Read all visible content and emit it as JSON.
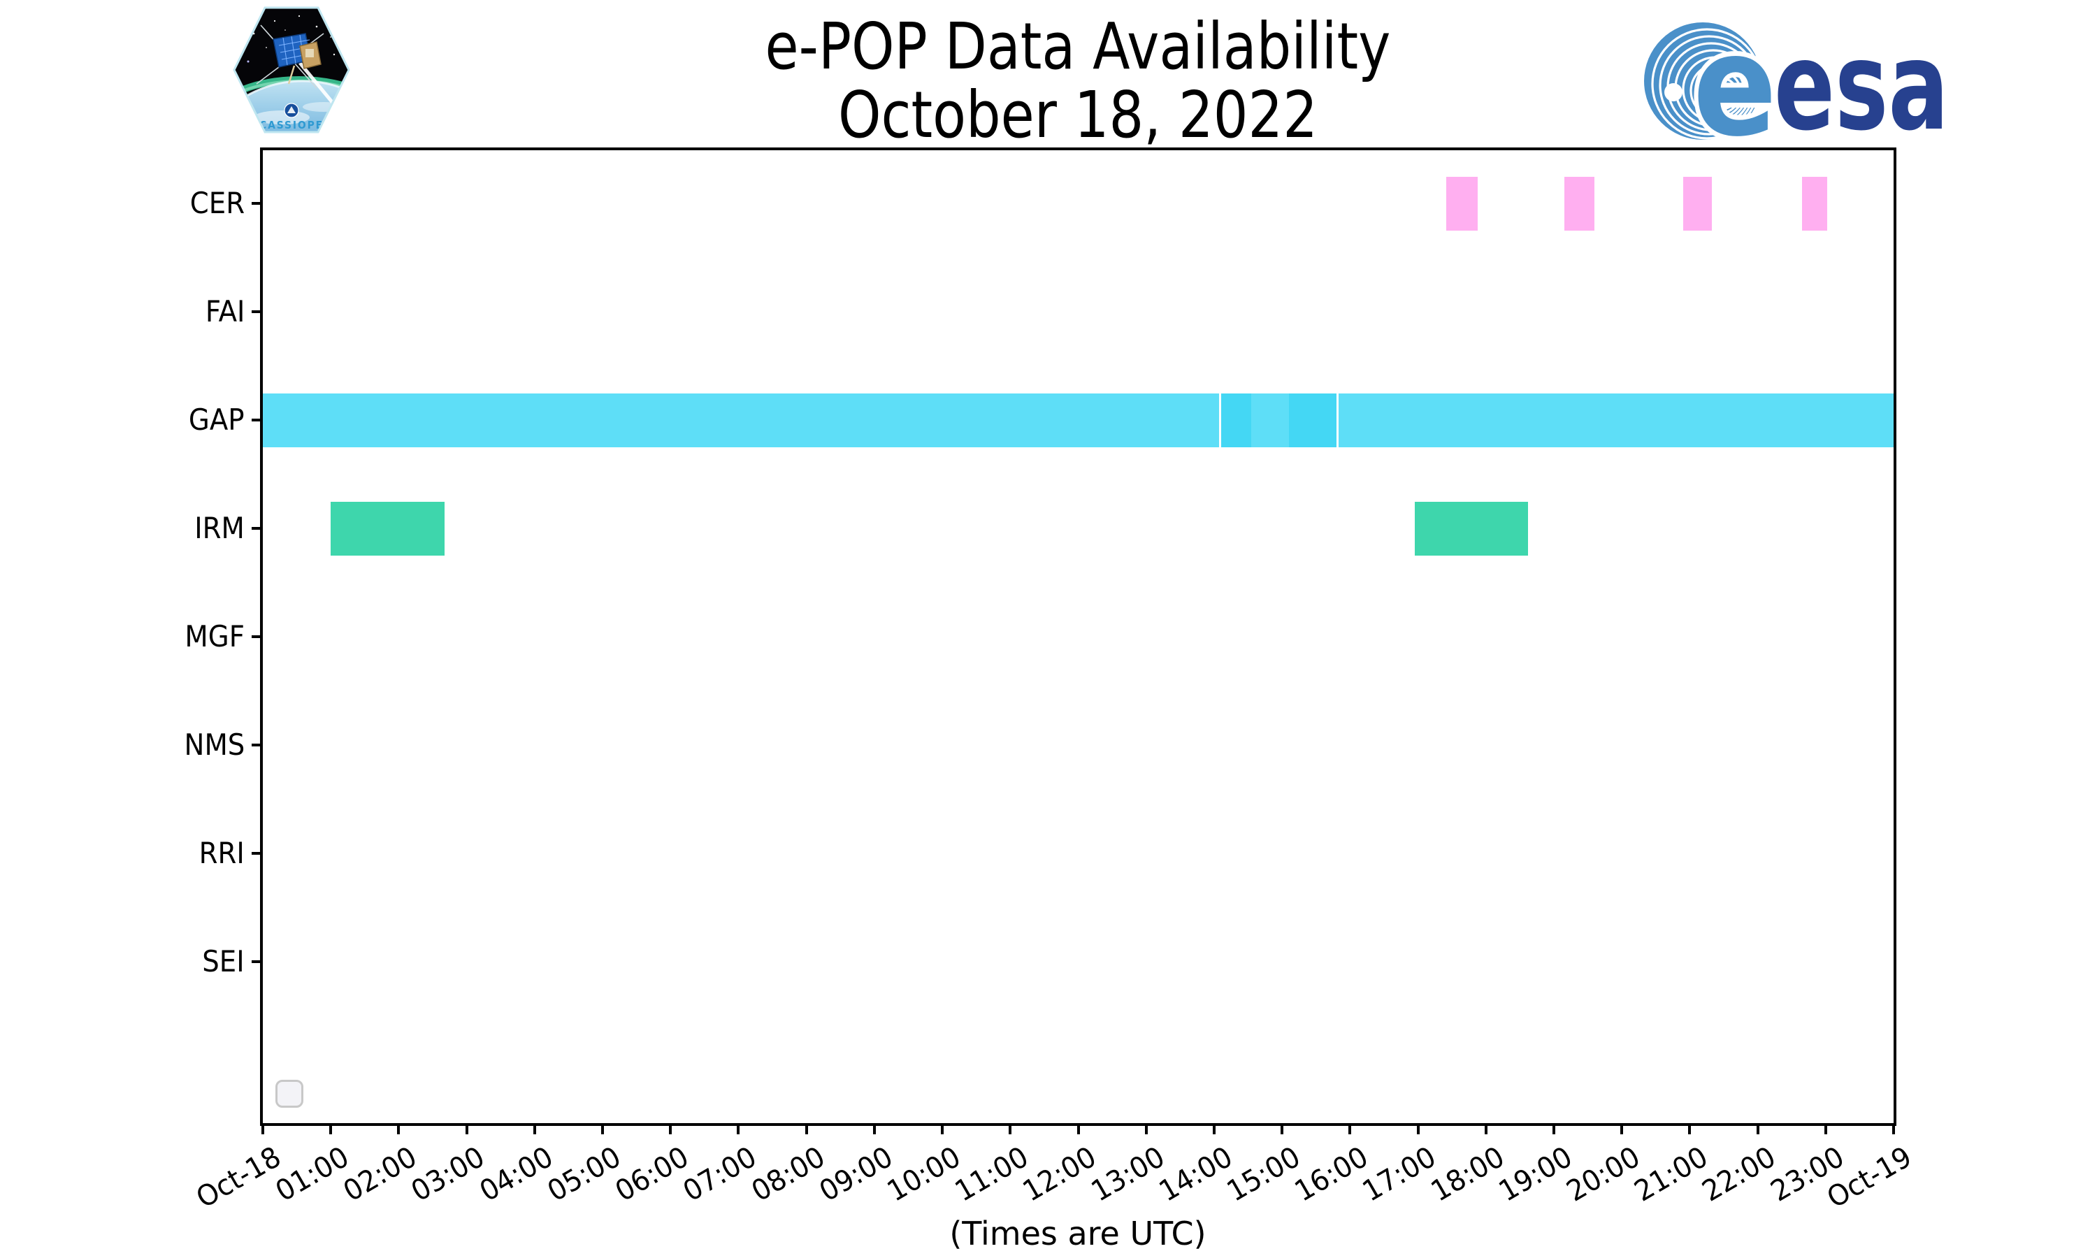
{
  "title": {
    "line1": "e-POP Data Availability",
    "line2": "October 18, 2022"
  },
  "logos": {
    "cassiope": {
      "label": "CASSIOPE"
    },
    "esa": {
      "text": "esa"
    }
  },
  "widgets": {
    "checkbox_checked": false
  },
  "chart_data": {
    "type": "timeline",
    "title": "e-POP Data Availability",
    "subtitle": "October 18, 2022",
    "xlabel": "(Times are UTC)",
    "x_range_hours": [
      0,
      24
    ],
    "x_ticks": [
      "Oct-18",
      "01:00",
      "02:00",
      "03:00",
      "04:00",
      "05:00",
      "06:00",
      "07:00",
      "08:00",
      "09:00",
      "10:00",
      "11:00",
      "12:00",
      "13:00",
      "14:00",
      "15:00",
      "16:00",
      "17:00",
      "18:00",
      "19:00",
      "20:00",
      "21:00",
      "22:00",
      "23:00",
      "Oct-19"
    ],
    "categories": [
      "CER",
      "FAI",
      "GAP",
      "IRM",
      "MGF",
      "NMS",
      "RRI",
      "SEI"
    ],
    "colors": {
      "cer_pink": "#ffaff0",
      "gap_cyan_light": "#5edef7",
      "gap_cyan_dark": "#44d7f4",
      "irm_green": "#3ed6ac",
      "axis_black": "#000000"
    },
    "legend": "none",
    "grid": "off",
    "series": [
      {
        "instrument": "CER",
        "intervals": [
          {
            "start": "17:25",
            "end": "17:53",
            "start_h": 17.42,
            "end_h": 17.88,
            "color": "#ffaff0"
          },
          {
            "start": "19:09",
            "end": "19:36",
            "start_h": 19.15,
            "end_h": 19.6,
            "color": "#ffaff0"
          },
          {
            "start": "20:54",
            "end": "21:20",
            "start_h": 20.9,
            "end_h": 21.33,
            "color": "#ffaff0"
          },
          {
            "start": "22:39",
            "end": "23:01",
            "start_h": 22.65,
            "end_h": 23.02,
            "color": "#ffaff0"
          }
        ]
      },
      {
        "instrument": "FAI",
        "intervals": []
      },
      {
        "instrument": "GAP",
        "intervals": [
          {
            "start": "00:00",
            "end": "14:04",
            "start_h": 0.0,
            "end_h": 14.07,
            "color": "#5edef7"
          },
          {
            "start": "14:06",
            "end": "14:33",
            "start_h": 14.1,
            "end_h": 14.55,
            "color": "#44d7f4"
          },
          {
            "start": "14:33",
            "end": "15:06",
            "start_h": 14.55,
            "end_h": 15.1,
            "color": "#5edef7"
          },
          {
            "start": "15:06",
            "end": "15:48",
            "start_h": 15.1,
            "end_h": 15.8,
            "color": "#44d7f4"
          },
          {
            "start": "15:50",
            "end": "24:00",
            "start_h": 15.83,
            "end_h": 24.0,
            "color": "#5edef7"
          }
        ]
      },
      {
        "instrument": "IRM",
        "intervals": [
          {
            "start": "01:00",
            "end": "02:40",
            "start_h": 1.0,
            "end_h": 2.67,
            "color": "#3ed6ac"
          },
          {
            "start": "16:57",
            "end": "18:37",
            "start_h": 16.95,
            "end_h": 18.62,
            "color": "#3ed6ac"
          }
        ]
      },
      {
        "instrument": "MGF",
        "intervals": []
      },
      {
        "instrument": "NMS",
        "intervals": []
      },
      {
        "instrument": "RRI",
        "intervals": []
      },
      {
        "instrument": "SEI",
        "intervals": []
      }
    ]
  }
}
